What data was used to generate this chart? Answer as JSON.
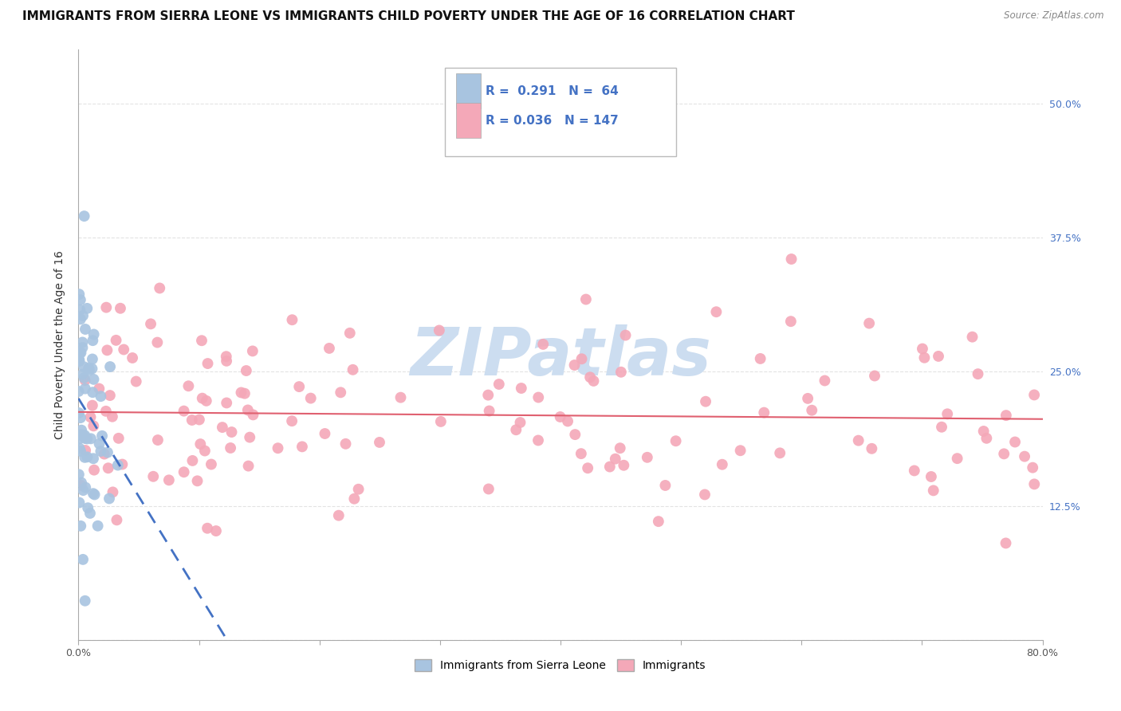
{
  "title": "IMMIGRANTS FROM SIERRA LEONE VS IMMIGRANTS CHILD POVERTY UNDER THE AGE OF 16 CORRELATION CHART",
  "source": "Source: ZipAtlas.com",
  "ylabel": "Child Poverty Under the Age of 16",
  "xlim": [
    0.0,
    0.8
  ],
  "ylim": [
    0.0,
    0.55
  ],
  "xtick_vals": [
    0.0,
    0.1,
    0.2,
    0.3,
    0.4,
    0.5,
    0.6,
    0.7,
    0.8
  ],
  "xticklabels": [
    "0.0%",
    "",
    "",
    "",
    "",
    "",
    "",
    "",
    "80.0%"
  ],
  "ytick_vals": [
    0.0,
    0.125,
    0.25,
    0.375,
    0.5
  ],
  "yticklabels_right": [
    "",
    "12.5%",
    "25.0%",
    "37.5%",
    "50.0%"
  ],
  "legend_blue_R": "0.291",
  "legend_blue_N": "64",
  "legend_pink_R": "0.036",
  "legend_pink_N": "147",
  "legend_label_blue": "Immigrants from Sierra Leone",
  "legend_label_pink": "Immigrants",
  "blue_color": "#a8c4e0",
  "pink_color": "#f4a8b8",
  "blue_line_color": "#4472C4",
  "pink_line_color": "#e06070",
  "watermark_text": "ZIPatlas",
  "watermark_color": "#ccddf0",
  "title_fontsize": 11,
  "axis_label_fontsize": 10,
  "tick_fontsize": 9,
  "legend_text_color": "#333333",
  "legend_value_color": "#4472C4",
  "right_tick_color": "#4472C4",
  "grid_color": "#dddddd"
}
